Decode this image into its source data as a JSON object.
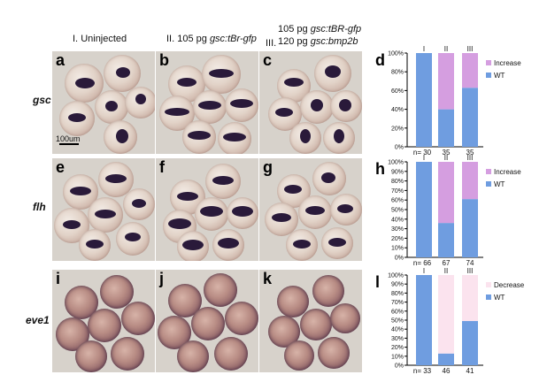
{
  "columns": [
    {
      "roman": "I.",
      "text": "Uninjected"
    },
    {
      "roman": "II.",
      "text_plain": "105 pg ",
      "text_italic": "gsc:tBr-gfp"
    },
    {
      "roman": "III.",
      "line1_plain": "105 pg ",
      "line1_italic": "gsc:tBR-gfp",
      "line2_plain": "120 pg ",
      "line2_italic": "gsc:bmp2b"
    }
  ],
  "rows": [
    {
      "gene": "gsc",
      "panels": [
        "a",
        "b",
        "c"
      ],
      "chart_letter": "d"
    },
    {
      "gene": "flh",
      "panels": [
        "e",
        "f",
        "g"
      ],
      "chart_letter": "h"
    },
    {
      "gene": "eve1",
      "panels": [
        "i",
        "j",
        "k"
      ],
      "chart_letter": "l"
    }
  ],
  "scale_bar": "100um",
  "colors": {
    "wt": "#6f9de0",
    "increase": "#d59ee0",
    "decrease": "#fbe3ee"
  },
  "chart_data": [
    {
      "type": "bar",
      "stacked": true,
      "percent": true,
      "categories": [
        "I",
        "II",
        "III"
      ],
      "n_labels": [
        "n= 30",
        "35",
        "35"
      ],
      "yticks": [
        "0%",
        "20%",
        "40%",
        "60%",
        "80%",
        "100%"
      ],
      "series": [
        {
          "name": "WT",
          "values": [
            100,
            40,
            63
          ]
        },
        {
          "name": "Increase",
          "values": [
            0,
            60,
            37
          ]
        }
      ],
      "ylim": [
        0,
        100
      ],
      "legend": "right"
    },
    {
      "type": "bar",
      "stacked": true,
      "percent": true,
      "categories": [
        "I",
        "II",
        "III"
      ],
      "n_labels": [
        "n= 66",
        "67",
        "74"
      ],
      "yticks": [
        "0%",
        "10%",
        "20%",
        "30%",
        "40%",
        "50%",
        "60%",
        "70%",
        "80%",
        "90%",
        "100%"
      ],
      "series": [
        {
          "name": "WT",
          "values": [
            100,
            36,
            61
          ]
        },
        {
          "name": "Increase",
          "values": [
            0,
            64,
            39
          ]
        }
      ],
      "ylim": [
        0,
        100
      ],
      "legend": "right"
    },
    {
      "type": "bar",
      "stacked": true,
      "percent": true,
      "categories": [
        "I",
        "II",
        "III"
      ],
      "n_labels": [
        "n= 33",
        "46",
        "41"
      ],
      "yticks": [
        "0%",
        "10%",
        "20%",
        "30%",
        "40%",
        "50%",
        "60%",
        "70%",
        "80%",
        "90%",
        "100%"
      ],
      "series": [
        {
          "name": "WT",
          "values": [
            100,
            13,
            49
          ]
        },
        {
          "name": "Decrease",
          "values": [
            0,
            87,
            51
          ]
        }
      ],
      "ylim": [
        0,
        100
      ],
      "legend": "right"
    }
  ]
}
